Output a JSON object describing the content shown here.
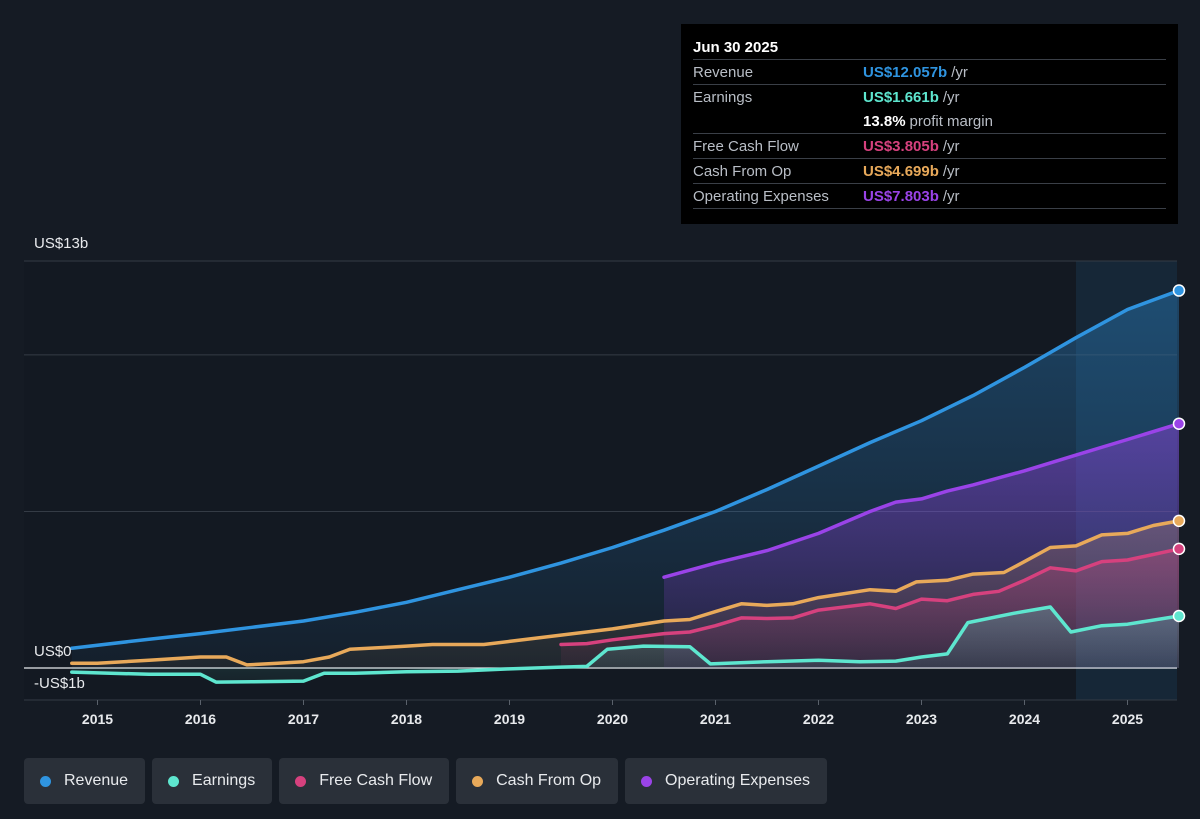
{
  "colors": {
    "revenue": "#2f94e0",
    "earnings": "#5ee6cf",
    "free_cash_flow": "#d6417e",
    "cash_from_op": "#e8a95a",
    "operating_expenses": "#9a43e8",
    "background": "#151b24"
  },
  "tooltip": {
    "date": "Jun 30 2025",
    "rows": [
      {
        "label": "Revenue",
        "value": "US$12.057b",
        "unit": "/yr",
        "color": "#2f94e0"
      },
      {
        "label": "Earnings",
        "value": "US$1.661b",
        "unit": "/yr",
        "color": "#5ee6cf"
      },
      {
        "label": "",
        "value": "13.8%",
        "unit": "profit margin",
        "color": "#ffffff"
      },
      {
        "label": "Free Cash Flow",
        "value": "US$3.805b",
        "unit": "/yr",
        "color": "#d6417e"
      },
      {
        "label": "Cash From Op",
        "value": "US$4.699b",
        "unit": "/yr",
        "color": "#e8a95a"
      },
      {
        "label": "Operating Expenses",
        "value": "US$7.803b",
        "unit": "/yr",
        "color": "#9a43e8"
      }
    ]
  },
  "legend": [
    {
      "label": "Revenue",
      "color": "#2f94e0"
    },
    {
      "label": "Earnings",
      "color": "#5ee6cf"
    },
    {
      "label": "Free Cash Flow",
      "color": "#d6417e"
    },
    {
      "label": "Cash From Op",
      "color": "#e8a95a"
    },
    {
      "label": "Operating Expenses",
      "color": "#9a43e8"
    }
  ],
  "chart_data": {
    "type": "area",
    "y_top_label": "US$13b",
    "y_zero_label": "US$0",
    "y_bottom_label": "-US$1b",
    "ylim": [
      -1,
      13
    ],
    "gridlines": [
      13,
      10,
      5,
      0
    ],
    "xlim": [
      2014.56,
      2025.5
    ],
    "x_ticks": [
      2015,
      2016,
      2017,
      2018,
      2019,
      2020,
      2021,
      2022,
      2023,
      2024,
      2025
    ],
    "x_tick_labels": [
      "2015",
      "2016",
      "2017",
      "2018",
      "2019",
      "2020",
      "2021",
      "2022",
      "2023",
      "2024",
      "2025"
    ],
    "forecast_start": 2024.5,
    "series": [
      {
        "name": "Revenue",
        "key": "revenue",
        "points": [
          [
            2014.75,
            0.63
          ],
          [
            2015.5,
            0.92
          ],
          [
            2016,
            1.1
          ],
          [
            2016.5,
            1.3
          ],
          [
            2017,
            1.5
          ],
          [
            2017.5,
            1.78
          ],
          [
            2018,
            2.1
          ],
          [
            2018.5,
            2.5
          ],
          [
            2019,
            2.9
          ],
          [
            2019.5,
            3.35
          ],
          [
            2020,
            3.85
          ],
          [
            2020.5,
            4.4
          ],
          [
            2021,
            5.0
          ],
          [
            2021.5,
            5.7
          ],
          [
            2022,
            6.45
          ],
          [
            2022.5,
            7.2
          ],
          [
            2023,
            7.9
          ],
          [
            2023.5,
            8.7
          ],
          [
            2024,
            9.6
          ],
          [
            2024.5,
            10.55
          ],
          [
            2025,
            11.45
          ],
          [
            2025.5,
            12.057
          ]
        ]
      },
      {
        "name": "Earnings",
        "key": "earnings",
        "points": [
          [
            2014.75,
            -0.13
          ],
          [
            2015.5,
            -0.2
          ],
          [
            2016,
            -0.2
          ],
          [
            2016.15,
            -0.45
          ],
          [
            2016.5,
            -0.44
          ],
          [
            2017,
            -0.42
          ],
          [
            2017.2,
            -0.17
          ],
          [
            2017.5,
            -0.17
          ],
          [
            2018,
            -0.12
          ],
          [
            2018.5,
            -0.1
          ],
          [
            2019,
            -0.03
          ],
          [
            2019.5,
            0.03
          ],
          [
            2019.75,
            0.05
          ],
          [
            2019.95,
            0.6
          ],
          [
            2020.3,
            0.7
          ],
          [
            2020.75,
            0.68
          ],
          [
            2020.95,
            0.13
          ],
          [
            2021.5,
            0.2
          ],
          [
            2022,
            0.25
          ],
          [
            2022.4,
            0.2
          ],
          [
            2022.75,
            0.22
          ],
          [
            2023,
            0.35
          ],
          [
            2023.25,
            0.45
          ],
          [
            2023.45,
            1.45
          ],
          [
            2023.9,
            1.75
          ],
          [
            2024.25,
            1.95
          ],
          [
            2024.45,
            1.15
          ],
          [
            2024.75,
            1.35
          ],
          [
            2025,
            1.4
          ],
          [
            2025.5,
            1.661
          ]
        ]
      },
      {
        "name": "Free Cash Flow",
        "key": "free_cash_flow",
        "points": [
          [
            2019.5,
            0.75
          ],
          [
            2019.75,
            0.78
          ],
          [
            2020,
            0.9
          ],
          [
            2020.5,
            1.1
          ],
          [
            2020.75,
            1.15
          ],
          [
            2021,
            1.35
          ],
          [
            2021.25,
            1.6
          ],
          [
            2021.5,
            1.58
          ],
          [
            2021.75,
            1.6
          ],
          [
            2022,
            1.85
          ],
          [
            2022.5,
            2.05
          ],
          [
            2022.75,
            1.9
          ],
          [
            2023,
            2.2
          ],
          [
            2023.25,
            2.15
          ],
          [
            2023.5,
            2.35
          ],
          [
            2023.75,
            2.45
          ],
          [
            2024,
            2.8
          ],
          [
            2024.25,
            3.2
          ],
          [
            2024.5,
            3.1
          ],
          [
            2024.75,
            3.4
          ],
          [
            2025,
            3.45
          ],
          [
            2025.5,
            3.805
          ]
        ]
      },
      {
        "name": "Cash From Op",
        "key": "cash_from_op",
        "points": [
          [
            2014.75,
            0.15
          ],
          [
            2015,
            0.15
          ],
          [
            2015.5,
            0.25
          ],
          [
            2016,
            0.35
          ],
          [
            2016.25,
            0.35
          ],
          [
            2016.45,
            0.1
          ],
          [
            2016.75,
            0.15
          ],
          [
            2017,
            0.2
          ],
          [
            2017.25,
            0.35
          ],
          [
            2017.45,
            0.6
          ],
          [
            2017.75,
            0.65
          ],
          [
            2018,
            0.7
          ],
          [
            2018.25,
            0.75
          ],
          [
            2018.75,
            0.75
          ],
          [
            2019,
            0.85
          ],
          [
            2019.5,
            1.05
          ],
          [
            2020,
            1.25
          ],
          [
            2020.5,
            1.5
          ],
          [
            2020.75,
            1.55
          ],
          [
            2021,
            1.8
          ],
          [
            2021.25,
            2.05
          ],
          [
            2021.5,
            2.0
          ],
          [
            2021.75,
            2.05
          ],
          [
            2022,
            2.25
          ],
          [
            2022.5,
            2.5
          ],
          [
            2022.75,
            2.45
          ],
          [
            2022.95,
            2.75
          ],
          [
            2023.25,
            2.8
          ],
          [
            2023.5,
            3.0
          ],
          [
            2023.8,
            3.05
          ],
          [
            2024,
            3.4
          ],
          [
            2024.25,
            3.85
          ],
          [
            2024.5,
            3.9
          ],
          [
            2024.75,
            4.25
          ],
          [
            2025,
            4.3
          ],
          [
            2025.25,
            4.55
          ],
          [
            2025.5,
            4.699
          ]
        ]
      },
      {
        "name": "Operating Expenses",
        "key": "operating_expenses",
        "points": [
          [
            2020.5,
            2.9
          ],
          [
            2021,
            3.35
          ],
          [
            2021.5,
            3.75
          ],
          [
            2022,
            4.3
          ],
          [
            2022.5,
            5.0
          ],
          [
            2022.75,
            5.3
          ],
          [
            2023,
            5.4
          ],
          [
            2023.25,
            5.65
          ],
          [
            2023.5,
            5.85
          ],
          [
            2024,
            6.3
          ],
          [
            2024.5,
            6.8
          ],
          [
            2025,
            7.3
          ],
          [
            2025.5,
            7.803
          ]
        ]
      }
    ]
  }
}
